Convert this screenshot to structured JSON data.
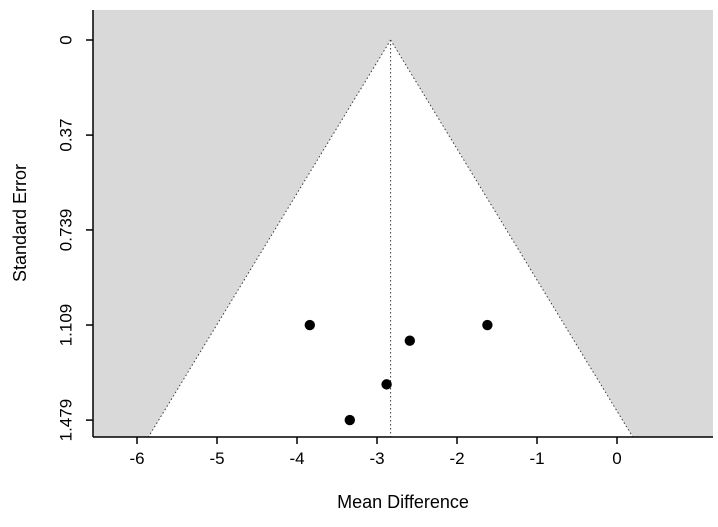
{
  "chart_data": {
    "type": "scatter",
    "variant": "funnel-plot",
    "title": "",
    "xlabel": "Mean Difference",
    "ylabel": "Standard Error",
    "x_ticks": [
      -6,
      -5,
      -4,
      -3,
      -2,
      -1,
      0
    ],
    "y_ticks": [
      0,
      0.37,
      0.739,
      1.109,
      1.479
    ],
    "y_axis_inverted": true,
    "xlim": [
      -6.55,
      1.2
    ],
    "se_range_visible": [
      0,
      1.545
    ],
    "reference_line_x": -2.83,
    "funnel": {
      "center_x": -2.83,
      "z": 1.96
    },
    "points": [
      {
        "x": -3.84,
        "se": 1.109
      },
      {
        "x": -1.62,
        "se": 1.109
      },
      {
        "x": -2.59,
        "se": 1.17
      },
      {
        "x": -2.88,
        "se": 1.34
      },
      {
        "x": -3.34,
        "se": 1.479
      }
    ],
    "grid": false,
    "legend": "none",
    "colors": {
      "shaded_region": "#d9d9d9",
      "funnel_fill": "#ffffff",
      "point": "#000000",
      "axis": "#000000",
      "funnel_edge": "#3c3c3c",
      "reference_line": "#3c3c3c"
    }
  }
}
